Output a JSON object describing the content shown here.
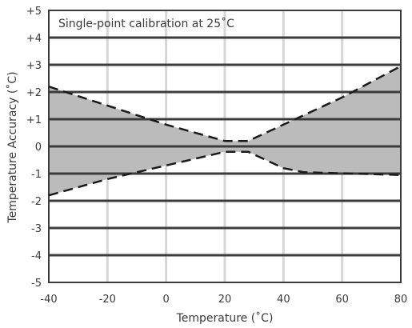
{
  "chart_data": {
    "type": "area",
    "annotation": "Single-point calibration at 25˚C",
    "xlabel": "Temperature (˚C)",
    "ylabel": "Temperature Accuracy (˚C)",
    "xlim": [
      -40,
      80
    ],
    "ylim": [
      -5,
      5
    ],
    "x_ticks": [
      "-40",
      "-20",
      "0",
      "20",
      "40",
      "60",
      "80"
    ],
    "y_ticks": [
      "+5",
      "+4",
      "+3",
      "+2",
      "+1",
      "0",
      "-1",
      "-2",
      "-3",
      "-4",
      "-5"
    ],
    "grid": true,
    "series": [
      {
        "x": [
          -40,
          -20,
          0,
          20,
          28,
          40,
          60,
          80
        ],
        "y": [
          2.2,
          1.5,
          0.8,
          0.2,
          0.2,
          0.8,
          1.8,
          2.95
        ]
      },
      {
        "x": [
          -40,
          -20,
          0,
          20,
          28,
          40,
          47,
          80
        ],
        "y": [
          -1.8,
          -1.2,
          -0.7,
          -0.2,
          -0.2,
          -0.8,
          -0.95,
          -1.05
        ]
      }
    ],
    "colors": {
      "band_fill": "#bbbbbb",
      "grid_major": "#3c3c3c",
      "grid_minor": "#d6d6d6",
      "line": "#1a1a1a"
    }
  }
}
